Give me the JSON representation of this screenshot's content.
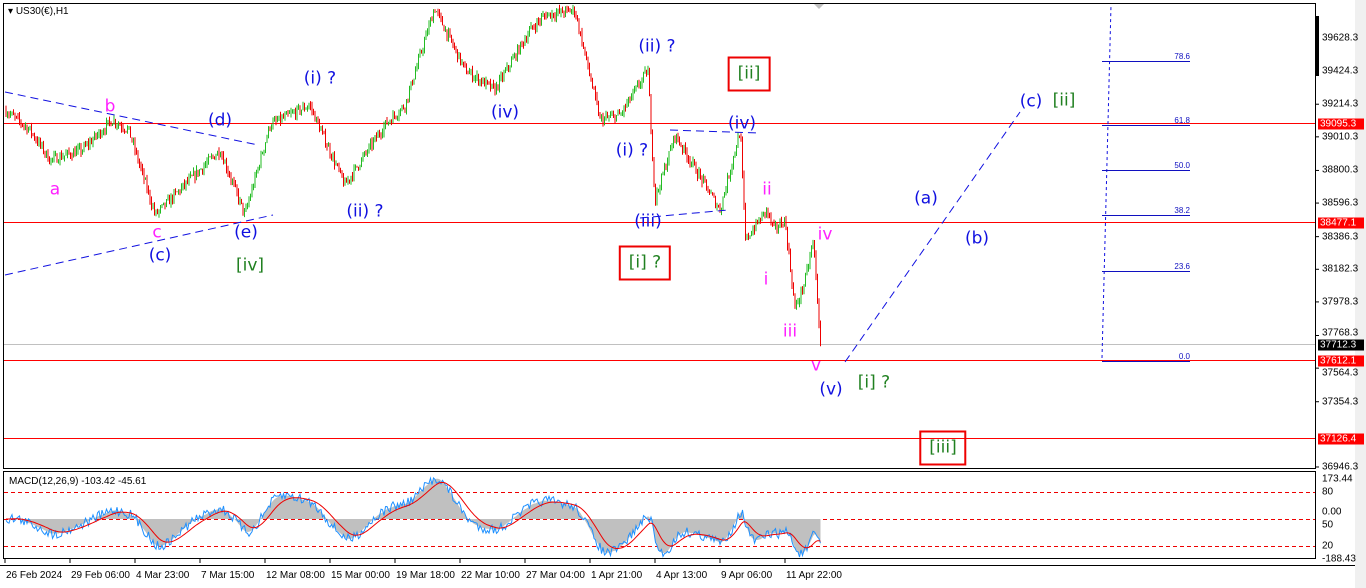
{
  "header": {
    "symbol_title": "US30(€),H1",
    "menu_icon": "triangle-down-icon"
  },
  "indicator": {
    "title": "MACD(12,26,9) -103.42 -45.61",
    "axis_labels": [
      "173.44",
      "80",
      "0.00",
      "50",
      "20",
      "-188.43"
    ]
  },
  "colors": {
    "bull": "#22bb22",
    "bear": "#ee0000",
    "level_line": "#ff0000",
    "wave_blue": "#1010e0",
    "wave_magenta": "#ff20ff",
    "wave_green": "#208020",
    "macd_main": "#1e90ff",
    "macd_signal": "#ee0000",
    "macd_hist": "#c0c0c0"
  },
  "chart_data": {
    "type": "candlestick",
    "timeframe": "H1",
    "ylim": [
      36946.3,
      39700
    ],
    "price_ticks": [
      "39628.3",
      "39424.3",
      "39214.3",
      "39010.3",
      "38800.3",
      "38596.3",
      "38386.3",
      "38182.3",
      "37978.3",
      "37768.3",
      "37564.3",
      "37354.3",
      "36946.3"
    ],
    "time_ticks": [
      {
        "label": "26 Feb 2024",
        "t": "2024-02-26T00:00"
      },
      {
        "label": "29 Feb 06:00",
        "t": "2024-02-29T06:00"
      },
      {
        "label": "4 Mar 23:00",
        "t": "2024-03-04T23:00"
      },
      {
        "label": "7 Mar 15:00",
        "t": "2024-03-07T15:00"
      },
      {
        "label": "12 Mar 08:00",
        "t": "2024-03-12T08:00"
      },
      {
        "label": "15 Mar 00:00",
        "t": "2024-03-15T00:00"
      },
      {
        "label": "19 Mar 18:00",
        "t": "2024-03-19T18:00"
      },
      {
        "label": "22 Mar 10:00",
        "t": "2024-03-22T10:00"
      },
      {
        "label": "27 Mar 04:00",
        "t": "2024-03-27T04:00"
      },
      {
        "label": "1 Apr 21:00",
        "t": "2024-04-01T21:00"
      },
      {
        "label": "4 Apr 13:00",
        "t": "2024-04-04T13:00"
      },
      {
        "label": "9 Apr 06:00",
        "t": "2024-04-09T06:00"
      },
      {
        "label": "11 Apr 22:00",
        "t": "2024-04-11T22:00"
      }
    ],
    "price_path": [
      [
        "2024-02-26T00:00",
        39178
      ],
      [
        "2024-02-27T06:00",
        39053
      ],
      [
        "2024-02-28T06:00",
        38866
      ],
      [
        "2024-03-01T03:00",
        38928
      ],
      [
        "2024-03-03T08:00",
        39116
      ],
      [
        "2024-03-04T12:00",
        39053
      ],
      [
        "2024-03-05T19:00",
        38522
      ],
      [
        "2024-03-07T05:00",
        38741
      ],
      [
        "2024-03-09T02:00",
        38928
      ],
      [
        "2024-03-10T21:00",
        38522
      ],
      [
        "2024-03-12T13:00",
        39084
      ],
      [
        "2024-03-14T04:00",
        39209
      ],
      [
        "2024-03-16T02:00",
        38709
      ],
      [
        "2024-03-19T00:00",
        39084
      ],
      [
        "2024-03-20T04:00",
        39209
      ],
      [
        "2024-03-21T09:00",
        39816
      ],
      [
        "2024-03-22T19:00",
        39428
      ],
      [
        "2024-03-24T23:00",
        39303
      ],
      [
        "2024-03-27T15:00",
        39678
      ],
      [
        "2024-03-28T22:00",
        39772
      ],
      [
        "2024-03-31T13:00",
        39803
      ],
      [
        "2024-04-02T07:00",
        39116
      ],
      [
        "2024-04-03T03:00",
        39147
      ],
      [
        "2024-04-04T06:00",
        39428
      ],
      [
        "2024-04-04T13:00",
        38615
      ],
      [
        "2024-04-06T00:00",
        39022
      ],
      [
        "2024-04-09T06:00",
        38553
      ],
      [
        "2024-04-10T02:00",
        39053
      ],
      [
        "2024-04-10T07:00",
        38365
      ],
      [
        "2024-04-11T04:00",
        38553
      ],
      [
        "2024-04-11T11:00",
        38428
      ],
      [
        "2024-04-11T22:00",
        38490
      ],
      [
        "2024-04-12T08:00",
        37928
      ],
      [
        "2024-04-12T18:00",
        38115
      ],
      [
        "2024-04-13T02:00",
        38365
      ],
      [
        "2024-04-13T09:00",
        37712
      ]
    ],
    "current_price": "37712.3",
    "horizontal_levels": [
      "39095.3",
      "38477.1",
      "37612.1",
      "37126.4"
    ],
    "fibonacci": {
      "levels": [
        {
          "label": "78.6",
          "price": 39484
        },
        {
          "label": "61.8",
          "price": 39084
        },
        {
          "label": "50.0",
          "price": 38803
        },
        {
          "label": "38.2",
          "price": 38522
        },
        {
          "label": "23.6",
          "price": 38174
        },
        {
          "label": "0.0",
          "price": 37612
        }
      ]
    },
    "wave_labels": {
      "a": "a",
      "b": "b",
      "c_minor": "c",
      "d": "(d)",
      "c": "(c)",
      "e": "(e)",
      "iv_major": "[iv]",
      "i1": "(i) ?",
      "ii1": "(ii) ?",
      "iv1": "(iv)",
      "ii2": "(ii) ?",
      "i2": "(i) ?",
      "iii2": "(iii)",
      "i_box": "[i] ?",
      "ii_box": "[ii]",
      "iv2": "(iv)",
      "ii_s": "ii",
      "i_s": "i",
      "iii_s": "iii",
      "iv_s": "iv",
      "v_s": "v",
      "v2": "(v)",
      "i_major": "[i] ?",
      "a_proj": "(a)",
      "b_proj": "(b)",
      "c_proj": "(c)",
      "ii_major": "[ii]",
      "iii_box": "[iii]"
    }
  }
}
